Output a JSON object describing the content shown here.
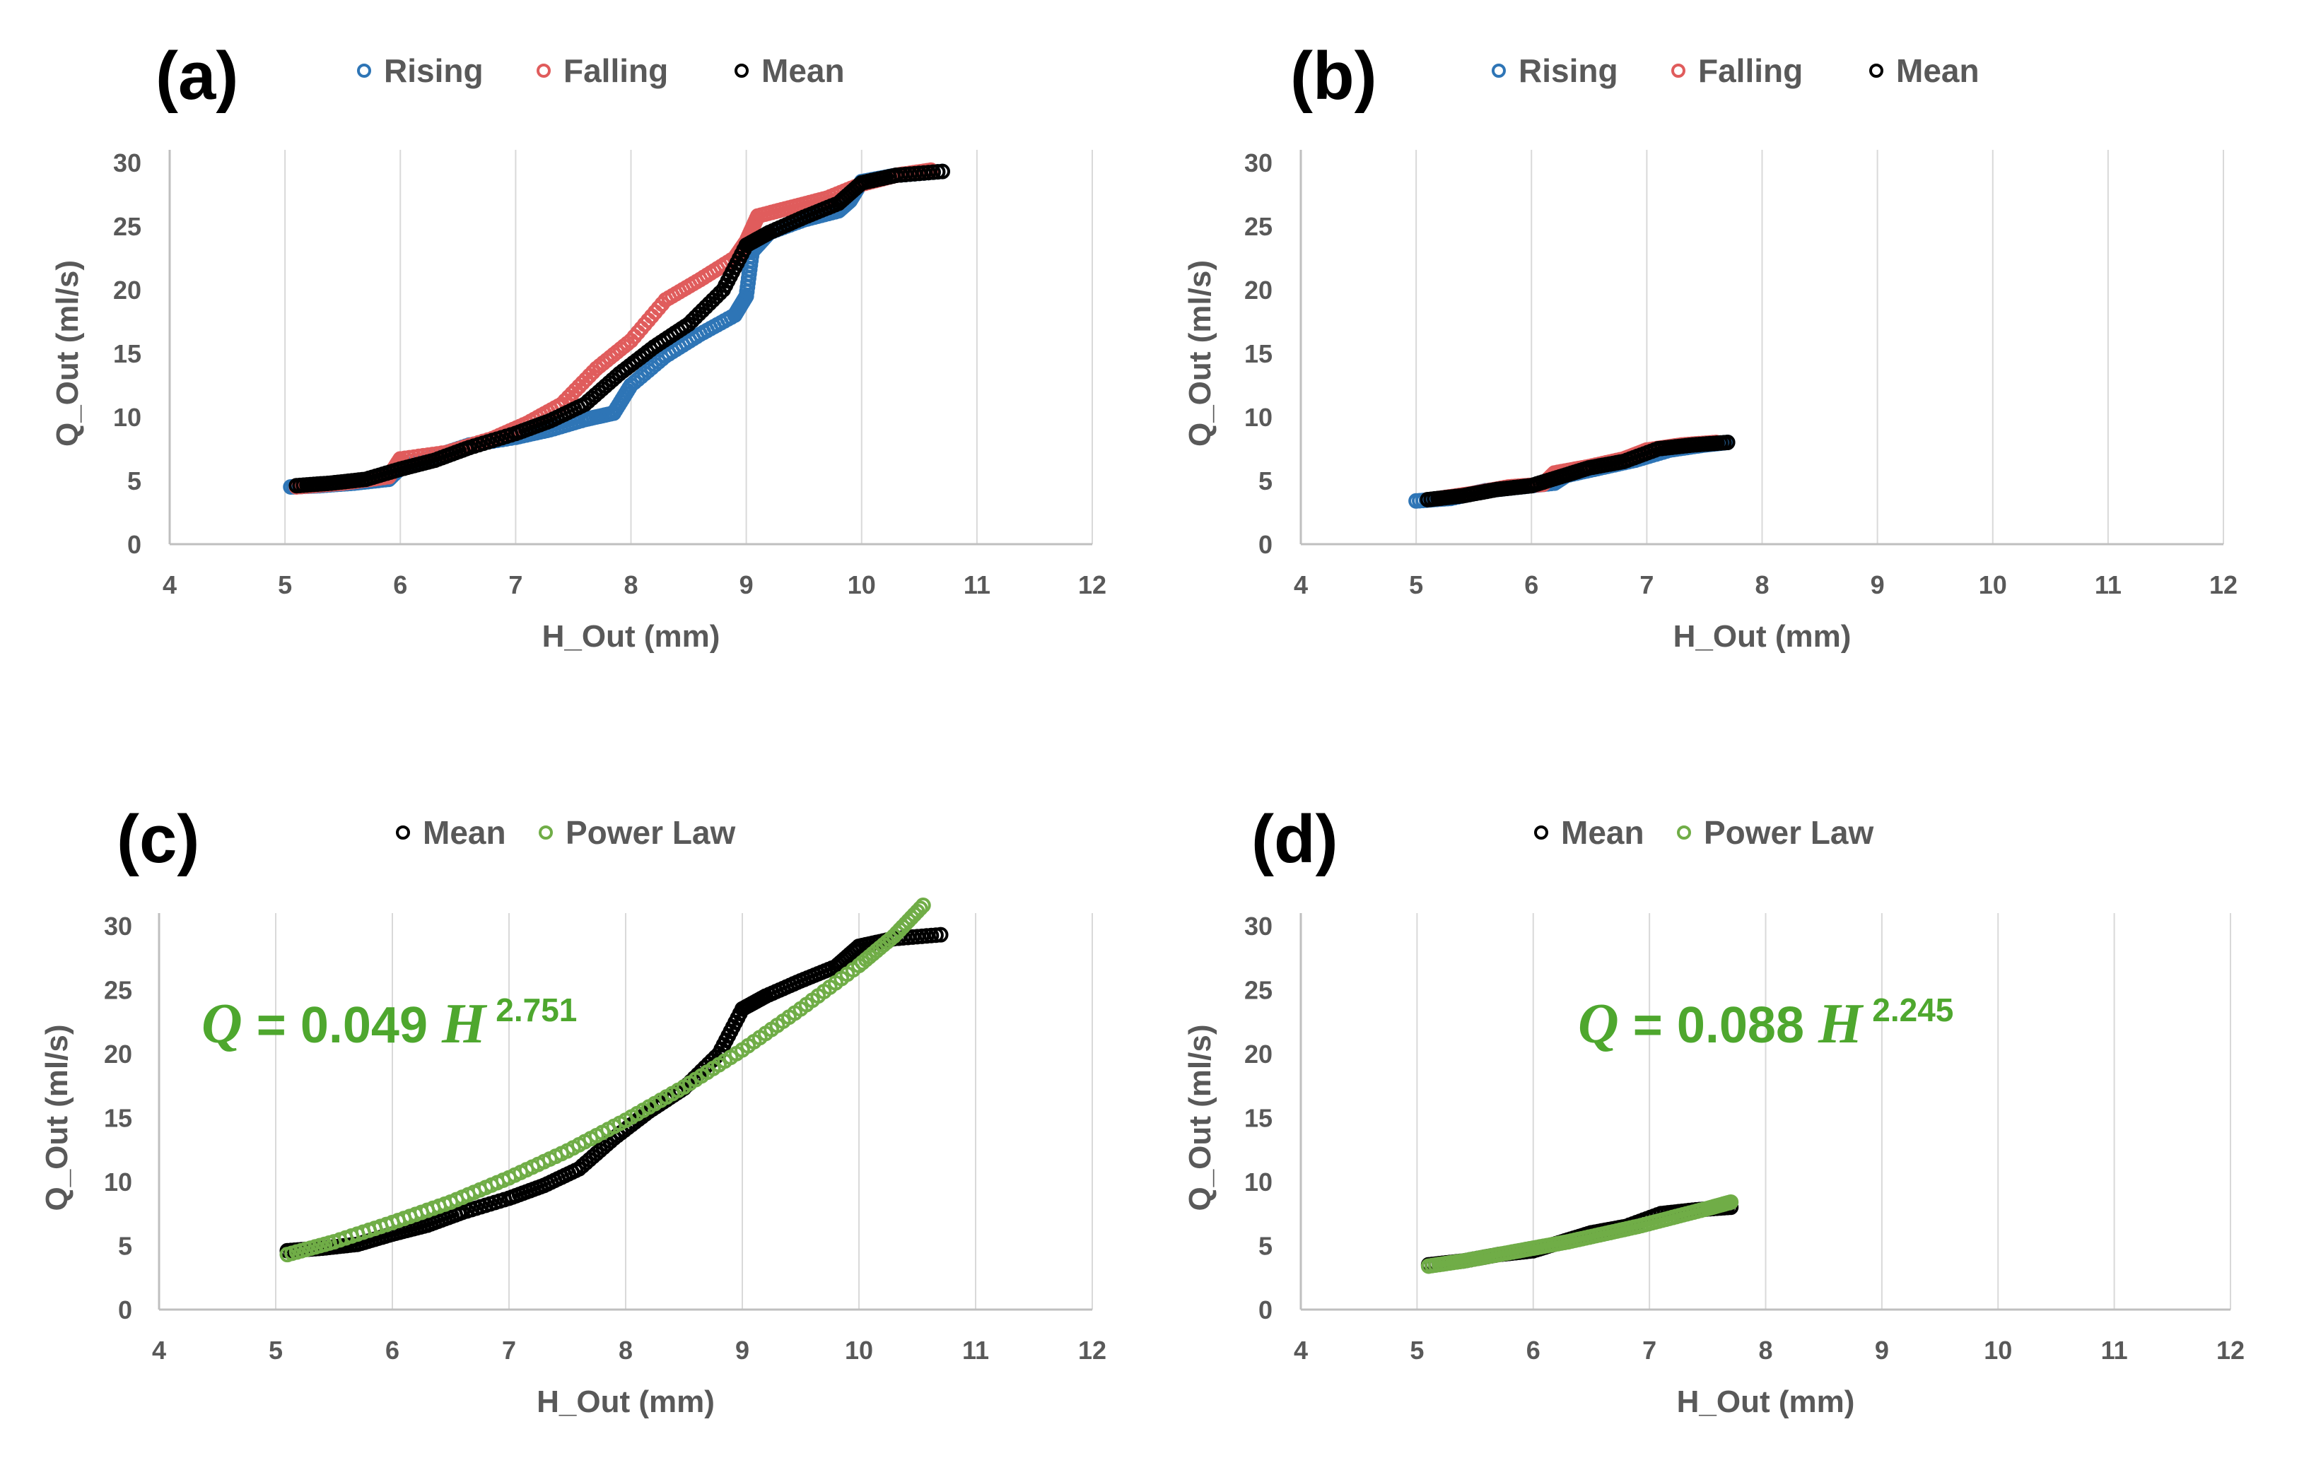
{
  "chart_data": [
    {
      "panel": "(a)",
      "type": "scatter",
      "xlabel": "H_Out (mm)",
      "ylabel": "Q_Out (ml/s)",
      "xlim": [
        4,
        12
      ],
      "ylim": [
        0,
        30
      ],
      "xticks": [
        4,
        5,
        6,
        7,
        8,
        9,
        10,
        11,
        12
      ],
      "yticks": [
        0,
        5,
        10,
        15,
        20,
        25,
        30
      ],
      "grid": "vertical",
      "legend": "top",
      "series": [
        {
          "name": "Rising",
          "color": "#2e75b6",
          "x": [
            5.05,
            5.3,
            5.6,
            5.9,
            6.0,
            6.3,
            6.6,
            7.0,
            7.3,
            7.6,
            7.85,
            8.0,
            8.3,
            8.6,
            8.9,
            9.0,
            9.05,
            9.2,
            9.5,
            9.8,
            9.9,
            10.0,
            10.3,
            10.7
          ],
          "y": [
            4.5,
            4.6,
            4.8,
            5.1,
            6.0,
            6.9,
            7.8,
            8.4,
            9.0,
            9.8,
            10.3,
            12.5,
            14.8,
            16.5,
            18.0,
            19.5,
            23.0,
            24.5,
            25.5,
            26.2,
            27.0,
            28.5,
            29.0,
            29.3
          ]
        },
        {
          "name": "Falling",
          "color": "#e05c5c",
          "x": [
            5.1,
            5.5,
            5.9,
            6.0,
            6.4,
            6.8,
            7.1,
            7.4,
            7.7,
            8.0,
            8.3,
            8.6,
            8.9,
            9.0,
            9.1,
            9.4,
            9.7,
            10.0,
            10.3,
            10.6
          ],
          "y": [
            4.5,
            4.8,
            5.3,
            6.7,
            7.2,
            8.3,
            9.5,
            11.0,
            13.8,
            16.0,
            19.2,
            20.8,
            22.5,
            23.8,
            25.8,
            26.5,
            27.2,
            28.3,
            29.0,
            29.4
          ]
        },
        {
          "name": "Mean",
          "color": "#000000",
          "x": [
            5.1,
            5.4,
            5.7,
            6.0,
            6.3,
            6.6,
            7.0,
            7.3,
            7.6,
            7.9,
            8.2,
            8.5,
            8.8,
            9.0,
            9.2,
            9.5,
            9.8,
            10.0,
            10.3,
            10.7
          ],
          "y": [
            4.6,
            4.8,
            5.1,
            5.9,
            6.6,
            7.6,
            8.7,
            9.7,
            11.0,
            13.4,
            15.5,
            17.3,
            20.0,
            23.5,
            24.5,
            25.7,
            26.8,
            28.4,
            29.0,
            29.3
          ]
        }
      ]
    },
    {
      "panel": "(b)",
      "type": "scatter",
      "xlabel": "H_Out (mm)",
      "ylabel": "Q_Out (ml/s)",
      "xlim": [
        4,
        12
      ],
      "ylim": [
        0,
        30
      ],
      "xticks": [
        4,
        5,
        6,
        7,
        8,
        9,
        10,
        11,
        12
      ],
      "yticks": [
        0,
        5,
        10,
        15,
        20,
        25,
        30
      ],
      "grid": "vertical",
      "legend": "top",
      "series": [
        {
          "name": "Rising",
          "color": "#2e75b6",
          "x": [
            5.0,
            5.3,
            5.6,
            5.9,
            6.2,
            6.3,
            6.6,
            6.9,
            7.2,
            7.5,
            7.7
          ],
          "y": [
            3.4,
            3.6,
            4.2,
            4.5,
            4.8,
            5.4,
            6.0,
            6.6,
            7.4,
            7.8,
            8.0
          ]
        },
        {
          "name": "Falling",
          "color": "#e05c5c",
          "x": [
            5.2,
            5.5,
            5.8,
            6.1,
            6.2,
            6.5,
            6.8,
            7.0,
            7.3,
            7.6
          ],
          "y": [
            3.6,
            4.0,
            4.5,
            4.7,
            5.6,
            6.1,
            6.7,
            7.4,
            7.8,
            8.0
          ]
        },
        {
          "name": "Mean",
          "color": "#000000",
          "x": [
            5.1,
            5.4,
            5.7,
            6.0,
            6.25,
            6.5,
            6.8,
            7.1,
            7.4,
            7.7
          ],
          "y": [
            3.5,
            3.8,
            4.3,
            4.6,
            5.3,
            6.0,
            6.5,
            7.5,
            7.8,
            8.0
          ]
        }
      ]
    },
    {
      "panel": "(c)",
      "type": "scatter",
      "xlabel": "H_Out (mm)",
      "ylabel": "Q_Out (ml/s)",
      "xlim": [
        4,
        12
      ],
      "ylim": [
        0,
        30
      ],
      "xticks": [
        4,
        5,
        6,
        7,
        8,
        9,
        10,
        11,
        12
      ],
      "yticks": [
        0,
        5,
        10,
        15,
        20,
        25,
        30
      ],
      "grid": "vertical",
      "legend": "top",
      "annotation": {
        "q": "Q",
        "eq": " = 0.049 ",
        "h": "H",
        "exp": "2.751",
        "color": "#4ea72e"
      },
      "series": [
        {
          "name": "Mean",
          "color": "#000000",
          "x": [
            5.1,
            5.4,
            5.7,
            6.0,
            6.3,
            6.6,
            7.0,
            7.3,
            7.6,
            7.9,
            8.2,
            8.5,
            8.8,
            9.0,
            9.2,
            9.5,
            9.8,
            10.0,
            10.3,
            10.7
          ],
          "y": [
            4.6,
            4.8,
            5.1,
            5.9,
            6.6,
            7.6,
            8.7,
            9.7,
            11.0,
            13.4,
            15.5,
            17.3,
            20.0,
            23.5,
            24.5,
            25.7,
            26.8,
            28.4,
            29.0,
            29.3
          ]
        },
        {
          "name": "Power Law",
          "color": "#70ad47",
          "x": [
            5.1,
            5.5,
            6.0,
            6.5,
            7.0,
            7.5,
            8.0,
            8.5,
            9.0,
            9.5,
            10.0,
            10.3,
            10.55
          ],
          "y": [
            4.3,
            5.3,
            6.8,
            8.4,
            10.3,
            12.4,
            14.8,
            17.4,
            20.3,
            23.5,
            26.9,
            29.2,
            31.6
          ]
        }
      ]
    },
    {
      "panel": "(d)",
      "type": "scatter",
      "xlabel": "H_Out (mm)",
      "ylabel": "Q_Out (ml/s)",
      "xlim": [
        4,
        12
      ],
      "ylim": [
        0,
        30
      ],
      "xticks": [
        4,
        5,
        6,
        7,
        8,
        9,
        10,
        11,
        12
      ],
      "yticks": [
        0,
        5,
        10,
        15,
        20,
        25,
        30
      ],
      "grid": "vertical",
      "legend": "top",
      "annotation": {
        "q": "Q",
        "eq": " = 0.088 ",
        "h": "H",
        "exp": "2.245",
        "color": "#4ea72e"
      },
      "series": [
        {
          "name": "Mean",
          "color": "#000000",
          "x": [
            5.1,
            5.4,
            5.7,
            6.0,
            6.25,
            6.5,
            6.8,
            7.1,
            7.4,
            7.7
          ],
          "y": [
            3.5,
            3.8,
            4.3,
            4.6,
            5.3,
            6.0,
            6.5,
            7.5,
            7.8,
            8.0
          ]
        },
        {
          "name": "Power Law",
          "color": "#70ad47",
          "x": [
            5.1,
            5.4,
            5.7,
            6.0,
            6.3,
            6.6,
            6.9,
            7.2,
            7.5,
            7.7
          ],
          "y": [
            3.4,
            3.8,
            4.3,
            4.8,
            5.3,
            5.9,
            6.5,
            7.2,
            7.9,
            8.4
          ]
        }
      ]
    }
  ]
}
